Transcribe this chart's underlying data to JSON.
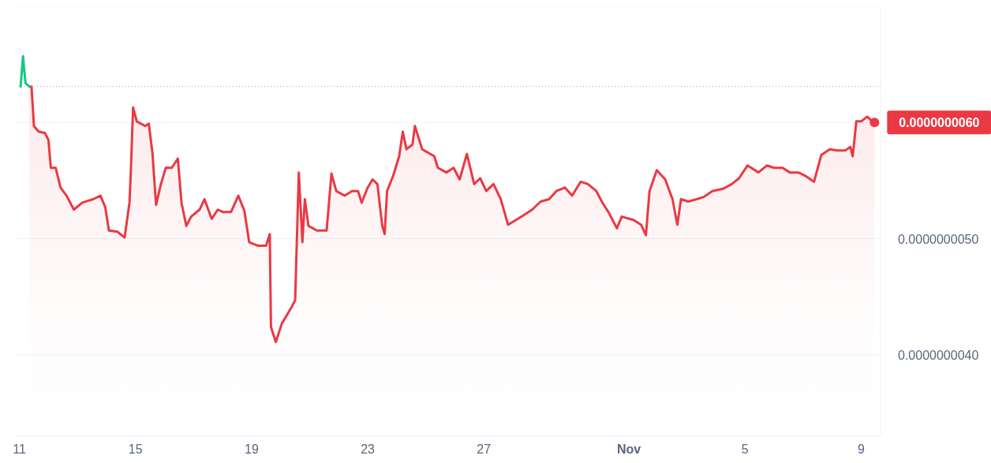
{
  "chart_data": {
    "type": "line",
    "xlim": [
      "--10-10T21:00",
      "--11-09T16:00"
    ],
    "xticks": [
      {
        "value": "--10-11",
        "label": "11"
      },
      {
        "value": "--10-15",
        "label": "15"
      },
      {
        "value": "--10-19",
        "label": "19"
      },
      {
        "value": "--10-23",
        "label": "23"
      },
      {
        "value": "--10-27",
        "label": "27"
      },
      {
        "value": "--11-01",
        "label": "Nov"
      },
      {
        "value": "--11-05",
        "label": "5"
      },
      {
        "value": "--11-09",
        "label": "9"
      }
    ],
    "ylim": [
      3.3e-09,
      7e-09
    ],
    "yticks": [
      {
        "value": 4e-09,
        "label": "0.0000000040"
      },
      {
        "value": 5e-09,
        "label": "0.0000000050"
      },
      {
        "value": 6e-09,
        "label": null
      }
    ],
    "grid": "y",
    "ref_lines": [
      {
        "axis": "y",
        "value": 6.31e-09,
        "color": "#a1a7bb",
        "line_style": "dotted"
      }
    ],
    "annotations": [
      {
        "text": "0.0000000060",
        "x": "--11-09T11:00",
        "y": 6e-09
      }
    ],
    "series": [
      {
        "type": "area",
        "color": "#ea3943",
        "x": [
          "--10-11T08:00",
          "--10-11T10:00",
          "--10-11T12:00",
          "--10-11T16:00",
          "--10-11T21:00",
          "--10-12T00:00",
          "--10-12T02:00",
          "--10-12T06:00",
          "--10-12T10:00",
          "--10-12T15:00",
          "--10-12T21:00",
          "--10-13T04:00",
          "--10-13T13:00",
          "--10-13T19:00",
          "--10-13T23:00",
          "--10-14T02:00",
          "--10-14T09:00",
          "--10-14T15:00",
          "--10-14T19:00",
          "--10-14T20:00",
          "--10-14T22:00",
          "--10-15T01:00",
          "--10-15T08:00",
          "--10-15T11:00",
          "--10-15T14:00",
          "--10-15T17:00",
          "--10-15T21:00",
          "--10-16T01:00",
          "--10-16T06:00",
          "--10-16T11:00",
          "--10-16T14:00",
          "--10-16T18:00",
          "--10-16T22:00",
          "--10-17T05:00",
          "--10-17T09:00",
          "--10-17T15:00",
          "--10-17T20:00",
          "--10-18T00:00",
          "--10-18T07:00",
          "--10-18T13:00",
          "--10-18T18:00",
          "--10-18T22:00",
          "--10-19T05:00",
          "--10-19T12:00",
          "--10-19T15:00",
          "--10-19T16:00",
          "--10-19T20:00",
          "--10-20T01:00",
          "--10-20T09:00",
          "--10-20T12:00",
          "--10-20T15:00",
          "--10-20T18:00",
          "--10-20T20:00",
          "--10-20T23:00",
          "--10-21T06:00",
          "--10-21T14:00",
          "--10-21T18:00",
          "--10-21T22:00",
          "--10-22T05:00",
          "--10-22T11:00",
          "--10-22T16:00",
          "--10-22T19:00",
          "--10-23T00:00",
          "--10-23T04:00",
          "--10-23T08:00",
          "--10-23T12:00",
          "--10-23T14:00",
          "--10-23T16:00",
          "--10-23T21:00",
          "--10-24T02:00",
          "--10-24T05:00",
          "--10-24T08:00",
          "--10-24T13:00",
          "--10-24T15:00",
          "--10-24T21:00",
          "--10-25T07:00",
          "--10-25T10:00",
          "--10-25T17:00",
          "--10-25T23:00",
          "--10-26T04:00",
          "--10-26T10:00",
          "--10-26T16:00",
          "--10-26T21:00",
          "--10-27T02:00",
          "--10-27T08:00",
          "--10-27T14:00",
          "--10-27T20:00",
          "--10-28T04:00",
          "--10-28T10:00",
          "--10-28T16:00",
          "--10-28T23:00",
          "--10-29T06:00",
          "--10-29T12:00",
          "--10-29T19:00",
          "--10-30T01:00",
          "--10-30T08:00",
          "--10-30T14:00",
          "--10-30T21:00",
          "--10-31T02:00",
          "--10-31T07:00",
          "--10-31T14:00",
          "--10-31T18:00",
          "--11-01T04:00",
          "--11-01T10:00",
          "--11-01T14:00",
          "--11-01T17:00",
          "--11-01T23:00",
          "--11-02T06:00",
          "--11-02T12:00",
          "--11-02T16:00",
          "--11-02T19:00",
          "--11-03T01:00",
          "--11-03T08:00",
          "--11-03T14:00",
          "--11-03T21:00",
          "--11-04T06:00",
          "--11-04T13:00",
          "--11-04T19:00",
          "--11-05T02:00",
          "--11-05T11:00",
          "--11-05T18:00",
          "--11-06T00:00",
          "--11-06T07:00",
          "--11-06T13:00",
          "--11-06T20:00",
          "--11-07T02:00",
          "--11-07T09:00",
          "--11-07T15:00",
          "--11-07T22:00",
          "--11-08T04:00",
          "--11-08T11:00",
          "--11-08T15:00",
          "--11-08T17:00",
          "--11-08T20:00",
          "--11-09T00:00",
          "--11-09T05:00",
          "--11-09T09:00",
          "--11-09T11:00"
        ],
        "values": [
          6.31e-09,
          6.31e-09,
          5.97e-09,
          5.92e-09,
          5.91e-09,
          5.85e-09,
          5.61e-09,
          5.61e-09,
          5.44e-09,
          5.37e-09,
          5.25e-09,
          5.31e-09,
          5.34e-09,
          5.37e-09,
          5.27e-09,
          5.07e-09,
          5.06e-09,
          5.01e-09,
          5.31e-09,
          5.54e-09,
          6.13e-09,
          6.01e-09,
          5.97e-09,
          5.99e-09,
          5.74e-09,
          5.29e-09,
          5.47e-09,
          5.61e-09,
          5.61e-09,
          5.69e-09,
          5.31e-09,
          5.11e-09,
          5.19e-09,
          5.25e-09,
          5.34e-09,
          5.17e-09,
          5.25e-09,
          5.23e-09,
          5.23e-09,
          5.37e-09,
          5.24e-09,
          4.97e-09,
          4.94e-09,
          4.94e-09,
          5.04e-09,
          4.24e-09,
          4.11e-09,
          4.27e-09,
          4.41e-09,
          4.47e-09,
          5.57e-09,
          4.97e-09,
          5.34e-09,
          5.11e-09,
          5.07e-09,
          5.07e-09,
          5.56e-09,
          5.41e-09,
          5.37e-09,
          5.41e-09,
          5.41e-09,
          5.31e-09,
          5.44e-09,
          5.51e-09,
          5.47e-09,
          5.11e-09,
          5.04e-09,
          5.41e-09,
          5.54e-09,
          5.71e-09,
          5.92e-09,
          5.77e-09,
          5.81e-09,
          5.97e-09,
          5.77e-09,
          5.71e-09,
          5.61e-09,
          5.57e-09,
          5.61e-09,
          5.51e-09,
          5.73e-09,
          5.47e-09,
          5.52e-09,
          5.41e-09,
          5.47e-09,
          5.34e-09,
          5.12e-09,
          5.17e-09,
          5.21e-09,
          5.25e-09,
          5.32e-09,
          5.34e-09,
          5.41e-09,
          5.44e-09,
          5.37e-09,
          5.49e-09,
          5.47e-09,
          5.41e-09,
          5.31e-09,
          5.23e-09,
          5.09e-09,
          5.19e-09,
          5.16e-09,
          5.12e-09,
          5.03e-09,
          5.41e-09,
          5.59e-09,
          5.51e-09,
          5.34e-09,
          5.12e-09,
          5.34e-09,
          5.32e-09,
          5.34e-09,
          5.36e-09,
          5.41e-09,
          5.43e-09,
          5.47e-09,
          5.52e-09,
          5.63e-09,
          5.57e-09,
          5.63e-09,
          5.61e-09,
          5.61e-09,
          5.57e-09,
          5.57e-09,
          5.54e-09,
          5.49e-09,
          5.72e-09,
          5.77e-09,
          5.76e-09,
          5.76e-09,
          5.79e-09,
          5.71e-09,
          6.01e-09,
          6.01e-09,
          6.05e-09,
          6.01e-09,
          6e-09
        ]
      },
      {
        "color": "#16c784",
        "x": [
          "--10-11T01:00",
          "--10-11T03:00",
          "--10-11T05:00",
          "--10-11T08:00"
        ],
        "values": [
          6.31e-09,
          6.57e-09,
          6.34e-09,
          6.31e-09
        ]
      }
    ]
  }
}
